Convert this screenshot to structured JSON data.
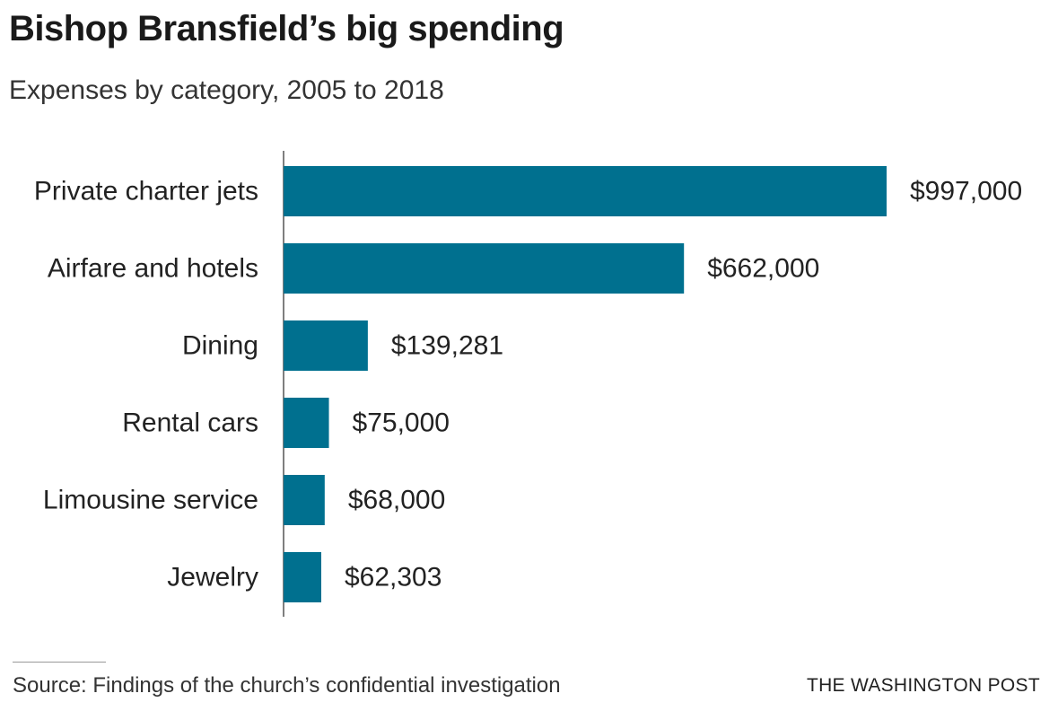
{
  "header": {
    "title": "Bishop Bransfield’s big spending",
    "subtitle": "Expenses by category, 2005 to 2018"
  },
  "chart_data": {
    "type": "bar",
    "orientation": "horizontal",
    "title": "Bishop Bransfield’s big spending",
    "subtitle": "Expenses by category, 2005 to 2018",
    "xlabel": "",
    "ylabel": "",
    "categories": [
      "Private charter jets",
      "Airfare and hotels",
      "Dining",
      "Rental cars",
      "Limousine service",
      "Jewelry"
    ],
    "values": [
      997000,
      662000,
      139281,
      75000,
      68000,
      62303
    ],
    "value_labels": [
      "$997,000",
      "$662,000",
      "$139,281",
      "$75,000",
      "$68,000",
      "$62,303"
    ],
    "xlim": [
      0,
      997000
    ],
    "grid": false,
    "bar_color": "#00708f"
  },
  "footer": {
    "source": "Source: Findings of the church’s confidential investigation",
    "credit": "THE WASHINGTON POST"
  }
}
